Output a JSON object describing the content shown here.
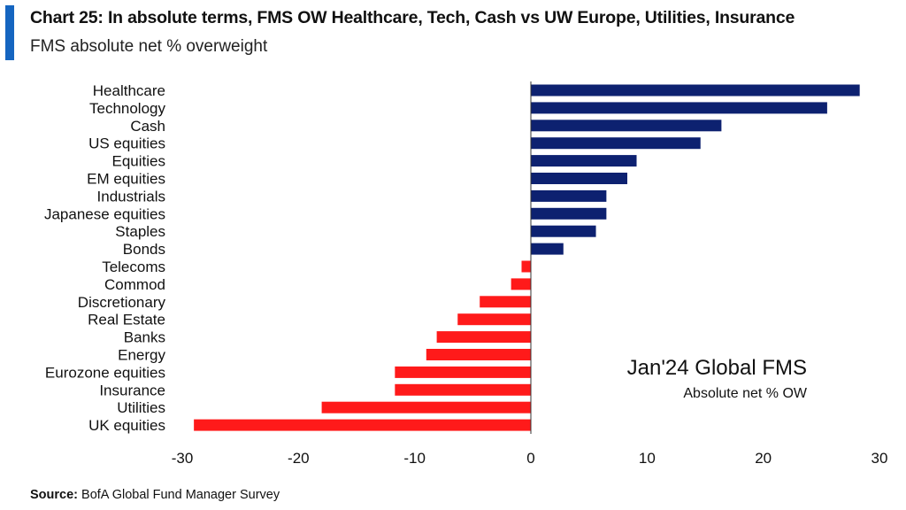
{
  "header": {
    "title": "Chart 25: In absolute terms, FMS OW Healthcare, Tech, Cash vs UW Europe, Utilities, Insurance",
    "subtitle": "FMS absolute net % overweight"
  },
  "annotation": {
    "line1": "Jan'24 Global FMS",
    "line2": "Absolute net % OW"
  },
  "footer": {
    "source_label": "Source:",
    "source_text": "BofA Global Fund Manager Survey"
  },
  "colors": {
    "positive": "#0d2170",
    "negative": "#ff1a1a",
    "accent": "#1565c0"
  },
  "chart_data": {
    "type": "bar",
    "orientation": "horizontal",
    "title": "Chart 25: In absolute terms, FMS OW Healthcare, Tech, Cash vs UW Europe, Utilities, Insurance",
    "subtitle": "FMS absolute net % overweight",
    "categories": [
      "Healthcare",
      "Technology",
      "Cash",
      "US equities",
      "Equities",
      "EM equities",
      "Industrials",
      "Japanese equities",
      "Staples",
      "Bonds",
      "Telecoms",
      "Commod",
      "Discretionary",
      "Real Estate",
      "Banks",
      "Energy",
      "Eurozone equities",
      "Insurance",
      "Utilities",
      "UK equities"
    ],
    "values": [
      28.3,
      25.5,
      16.4,
      14.6,
      9.1,
      8.3,
      6.5,
      6.5,
      5.6,
      2.8,
      -0.8,
      -1.7,
      -4.4,
      -6.3,
      -8.1,
      -9.0,
      -11.7,
      -11.7,
      -18.0,
      -29.0
    ],
    "xlim": [
      -30,
      30
    ],
    "xticks": [
      -30,
      -20,
      -10,
      0,
      10,
      20,
      30
    ],
    "grid": false,
    "legend": "none"
  }
}
